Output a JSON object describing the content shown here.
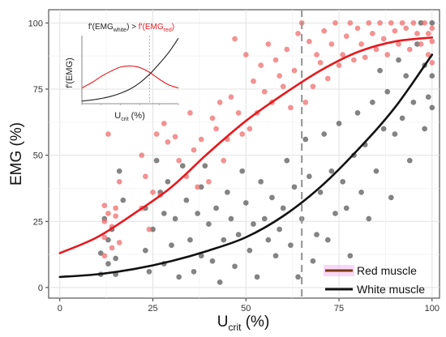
{
  "chart_data": {
    "type": "scatter",
    "title": "",
    "xlabel_main": "U",
    "xlabel_sub": "crit",
    "xlabel_unit": " (%)",
    "ylabel": "EMG (%)",
    "xlim": [
      -3,
      102
    ],
    "ylim": [
      -4,
      105
    ],
    "xticks": [
      0,
      25,
      50,
      75,
      100
    ],
    "yticks": [
      0,
      25,
      50,
      75,
      100
    ],
    "grid": true,
    "legend_position": "bottom-right",
    "vline_x": 65,
    "colors": {
      "red_points": "#f06a6a",
      "black_points": "#555555",
      "red_curve": "#e8191e",
      "black_curve": "#111111",
      "dashed_line": "#9a9a9a",
      "legend_red_swatch": "#7a3a10",
      "legend_glow": "#f4b6f4"
    },
    "series": [
      {
        "name": "Red muscle",
        "kind": "curve",
        "x": [
          0,
          10,
          20,
          30,
          40,
          50,
          60,
          70,
          80,
          90,
          100
        ],
        "y": [
          13,
          19,
          28,
          38,
          51,
          63,
          73,
          82,
          89,
          93,
          94.5
        ]
      },
      {
        "name": "White muscle",
        "kind": "curve",
        "x": [
          0,
          10,
          20,
          30,
          40,
          50,
          60,
          70,
          80,
          90,
          100
        ],
        "y": [
          4,
          5,
          7,
          10,
          14,
          19,
          27,
          38,
          52,
          68,
          88
        ]
      },
      {
        "kind": "points",
        "color_key": "red_points",
        "points": [
          [
            12,
            31
          ],
          [
            13,
            28
          ],
          [
            12,
            25
          ],
          [
            14,
            23
          ],
          [
            12,
            19
          ],
          [
            14,
            15
          ],
          [
            12,
            12
          ],
          [
            15,
            30
          ],
          [
            13,
            58
          ],
          [
            16,
            40
          ],
          [
            15,
            27
          ],
          [
            16,
            17
          ],
          [
            22,
            50
          ],
          [
            23,
            42
          ],
          [
            22,
            30
          ],
          [
            24,
            22
          ],
          [
            25,
            36
          ],
          [
            26,
            58
          ],
          [
            27,
            35
          ],
          [
            28,
            62
          ],
          [
            29,
            55
          ],
          [
            31,
            57
          ],
          [
            32,
            48
          ],
          [
            34,
            42
          ],
          [
            35,
            66
          ],
          [
            36,
            52
          ],
          [
            37,
            38
          ],
          [
            38,
            56
          ],
          [
            40,
            40
          ],
          [
            41,
            64
          ],
          [
            42,
            60
          ],
          [
            43,
            70
          ],
          [
            44,
            48
          ],
          [
            45,
            56
          ],
          [
            46,
            72
          ],
          [
            47,
            94
          ],
          [
            48,
            66
          ],
          [
            49,
            58
          ],
          [
            50,
            88
          ],
          [
            51,
            60
          ],
          [
            52,
            78
          ],
          [
            53,
            66
          ],
          [
            54,
            84
          ],
          [
            55,
            74
          ],
          [
            56,
            92
          ],
          [
            57,
            70
          ],
          [
            58,
            86
          ],
          [
            59,
            80
          ],
          [
            60,
            76
          ],
          [
            61,
            90
          ],
          [
            62,
            68
          ],
          [
            63,
            82
          ],
          [
            64,
            96
          ],
          [
            65,
            100
          ],
          [
            66,
            70
          ],
          [
            67,
            93
          ],
          [
            68,
            76
          ],
          [
            69,
            88
          ],
          [
            70,
            85
          ],
          [
            71,
            97
          ],
          [
            72,
            79
          ],
          [
            73,
            92
          ],
          [
            74,
            100
          ],
          [
            75,
            84
          ],
          [
            76,
            88
          ],
          [
            77,
            95
          ],
          [
            78,
            100
          ],
          [
            79,
            86
          ],
          [
            80,
            98
          ],
          [
            81,
            92
          ],
          [
            82,
            87
          ],
          [
            83,
            100
          ],
          [
            84,
            96
          ],
          [
            85,
            90
          ],
          [
            86,
            100
          ],
          [
            87,
            94
          ],
          [
            88,
            88
          ],
          [
            89,
            100
          ],
          [
            90,
            97
          ],
          [
            91,
            92
          ],
          [
            92,
            100
          ],
          [
            93,
            98
          ],
          [
            94,
            90
          ],
          [
            95,
            100
          ],
          [
            96,
            96
          ],
          [
            97,
            92
          ],
          [
            98,
            100
          ],
          [
            99,
            88
          ],
          [
            99,
            96
          ],
          [
            100,
            93
          ],
          [
            100,
            98
          ],
          [
            100,
            85
          ]
        ]
      },
      {
        "kind": "points",
        "color_key": "black_points",
        "points": [
          [
            11,
            13
          ],
          [
            11,
            5
          ],
          [
            12,
            26
          ],
          [
            13,
            18
          ],
          [
            13,
            9
          ],
          [
            14,
            22
          ],
          [
            15,
            11
          ],
          [
            15,
            5
          ],
          [
            16,
            44
          ],
          [
            17,
            33
          ],
          [
            23,
            14
          ],
          [
            23,
            30
          ],
          [
            24,
            6
          ],
          [
            25,
            22
          ],
          [
            26,
            48
          ],
          [
            27,
            36
          ],
          [
            28,
            9
          ],
          [
            28,
            28
          ],
          [
            29,
            40
          ],
          [
            30,
            16
          ],
          [
            31,
            26
          ],
          [
            32,
            4
          ],
          [
            33,
            46
          ],
          [
            34,
            33
          ],
          [
            35,
            18
          ],
          [
            36,
            6
          ],
          [
            37,
            28
          ],
          [
            38,
            12
          ],
          [
            38,
            38
          ],
          [
            39,
            46
          ],
          [
            40,
            24
          ],
          [
            41,
            10
          ],
          [
            42,
            30
          ],
          [
            43,
            2
          ],
          [
            44,
            18
          ],
          [
            45,
            36
          ],
          [
            46,
            26
          ],
          [
            47,
            8
          ],
          [
            48,
            20
          ],
          [
            49,
            44
          ],
          [
            50,
            32
          ],
          [
            51,
            14
          ],
          [
            52,
            24
          ],
          [
            53,
            4
          ],
          [
            54,
            40
          ],
          [
            55,
            26
          ],
          [
            56,
            18
          ],
          [
            57,
            34
          ],
          [
            58,
            12
          ],
          [
            59,
            22
          ],
          [
            60,
            30
          ],
          [
            61,
            48
          ],
          [
            62,
            16
          ],
          [
            63,
            38
          ],
          [
            64,
            4
          ],
          [
            65,
            26
          ],
          [
            66,
            56
          ],
          [
            67,
            42
          ],
          [
            68,
            10
          ],
          [
            69,
            20
          ],
          [
            70,
            36
          ],
          [
            71,
            58
          ],
          [
            72,
            18
          ],
          [
            73,
            44
          ],
          [
            74,
            28
          ],
          [
            75,
            62
          ],
          [
            76,
            40
          ],
          [
            77,
            30
          ],
          [
            78,
            12
          ],
          [
            79,
            50
          ],
          [
            80,
            66
          ],
          [
            81,
            36
          ],
          [
            82,
            54
          ],
          [
            83,
            26
          ],
          [
            84,
            70
          ],
          [
            85,
            44
          ],
          [
            86,
            82
          ],
          [
            87,
            60
          ],
          [
            88,
            74
          ],
          [
            89,
            34
          ],
          [
            90,
            58
          ],
          [
            91,
            86
          ],
          [
            92,
            64
          ],
          [
            93,
            80
          ],
          [
            94,
            48
          ],
          [
            95,
            70
          ],
          [
            96,
            92
          ],
          [
            97,
            100
          ],
          [
            98,
            84
          ],
          [
            98,
            60
          ],
          [
            99,
            72
          ],
          [
            100,
            100
          ],
          [
            100,
            80
          ],
          [
            100,
            68
          ]
        ]
      }
    ],
    "inset": {
      "title_part1": "f'(EMG",
      "title_sub1": "white",
      "title_part2": ") > ",
      "title_part3": "f'(EMG",
      "title_sub2": "red",
      "title_part4": ")",
      "ylabel": "f'(EMG)",
      "xlabel_main": "U",
      "xlabel_sub": "crit",
      "xlabel_unit": " (%)",
      "vline_x": 70,
      "series": [
        {
          "name": "Red muscle derivative",
          "x": [
            0,
            10,
            20,
            30,
            40,
            50,
            60,
            70,
            80,
            90,
            100
          ],
          "y": [
            0.3,
            0.4,
            0.52,
            0.62,
            0.7,
            0.72,
            0.69,
            0.6,
            0.47,
            0.36,
            0.3
          ]
        },
        {
          "name": "White muscle derivative",
          "x": [
            0,
            10,
            20,
            30,
            40,
            50,
            60,
            70,
            80,
            90,
            100
          ],
          "y": [
            0.05,
            0.07,
            0.1,
            0.14,
            0.2,
            0.28,
            0.4,
            0.56,
            0.76,
            0.98,
            1.25
          ]
        }
      ]
    }
  }
}
